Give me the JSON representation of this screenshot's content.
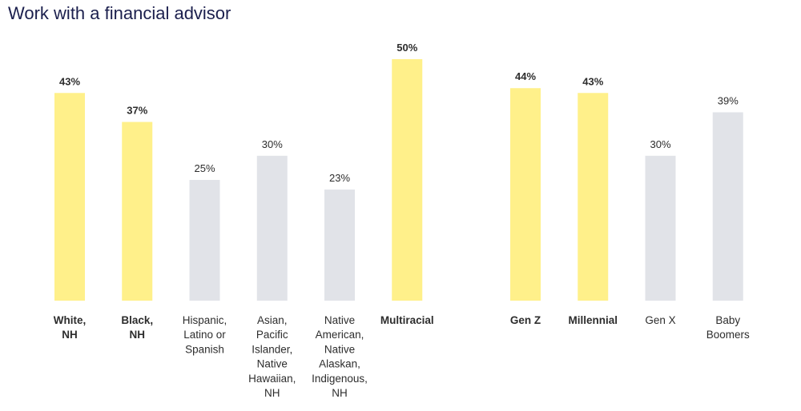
{
  "chart_data": {
    "type": "bar",
    "title": "Work with a financial advisor",
    "xlabel": "",
    "ylabel": "",
    "ylim": [
      0,
      50
    ],
    "grid": false,
    "colors": {
      "highlight": "#fff08a",
      "muted": "#e1e3e8"
    },
    "groups": [
      {
        "categories": [
          {
            "label": [
              "White,",
              "NH"
            ],
            "value": 43,
            "display": "43%",
            "highlight": true
          },
          {
            "label": [
              "Black,",
              "NH"
            ],
            "value": 37,
            "display": "37%",
            "highlight": true
          },
          {
            "label": [
              "Hispanic,",
              "Latino or",
              "Spanish"
            ],
            "value": 25,
            "display": "25%",
            "highlight": false
          },
          {
            "label": [
              "Asian,",
              "Pacific",
              "Islander,",
              "Native",
              "Hawaiian,",
              "NH"
            ],
            "value": 30,
            "display": "30%",
            "highlight": false
          },
          {
            "label": [
              "Native",
              "American,",
              "Native",
              "Alaskan,",
              "Indigenous,",
              "NH"
            ],
            "value": 23,
            "display": "23%",
            "highlight": false
          },
          {
            "label": [
              "Multiracial"
            ],
            "value": 50,
            "display": "50%",
            "highlight": true
          }
        ]
      },
      {
        "categories": [
          {
            "label": [
              "Gen Z"
            ],
            "value": 44,
            "display": "44%",
            "highlight": true
          },
          {
            "label": [
              "Millennial"
            ],
            "value": 43,
            "display": "43%",
            "highlight": true
          },
          {
            "label": [
              "Gen X"
            ],
            "value": 30,
            "display": "30%",
            "highlight": false
          },
          {
            "label": [
              "Baby",
              "Boomers"
            ],
            "value": 39,
            "display": "39%",
            "highlight": false
          }
        ]
      }
    ]
  }
}
